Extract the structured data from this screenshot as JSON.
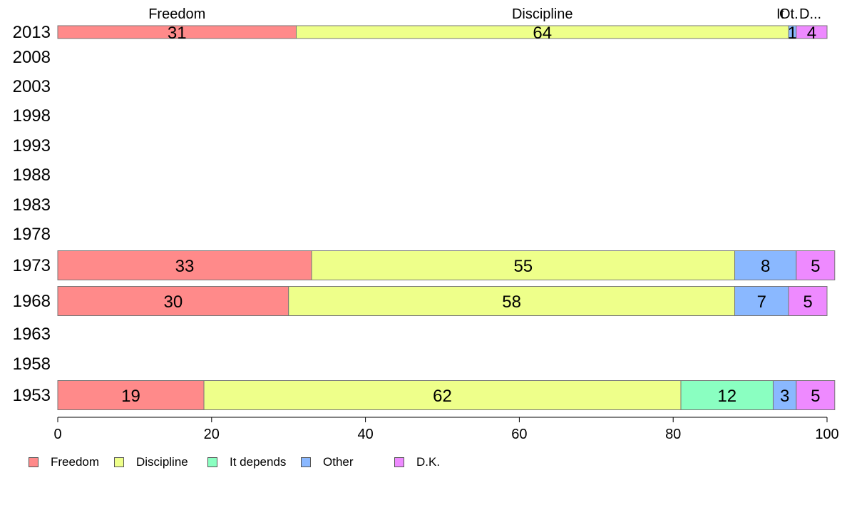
{
  "chart_data": {
    "type": "bar",
    "orientation": "horizontal",
    "stacked": true,
    "categories": [
      "2013",
      "2008",
      "2003",
      "1998",
      "1993",
      "1988",
      "1983",
      "1978",
      "1973",
      "1968",
      "1963",
      "1958",
      "1953"
    ],
    "series": [
      {
        "name": "Freedom",
        "color": "#FF8A8A",
        "values": [
          31,
          null,
          null,
          null,
          null,
          null,
          null,
          null,
          33,
          30,
          null,
          null,
          19
        ]
      },
      {
        "name": "Discipline",
        "color": "#EEFF8A",
        "values": [
          64,
          null,
          null,
          null,
          null,
          null,
          null,
          null,
          55,
          58,
          null,
          null,
          62
        ]
      },
      {
        "name": "It depends",
        "color": "#8AFFC1",
        "values": [
          0,
          null,
          null,
          null,
          null,
          null,
          null,
          null,
          0,
          0,
          null,
          null,
          12
        ]
      },
      {
        "name": "Other",
        "color": "#8AB8FF",
        "values": [
          1,
          null,
          null,
          null,
          null,
          null,
          null,
          null,
          8,
          7,
          null,
          null,
          3
        ]
      },
      {
        "name": "D.K.",
        "color": "#EE8AFF",
        "values": [
          4,
          null,
          null,
          null,
          null,
          null,
          null,
          null,
          5,
          5,
          null,
          null,
          5
        ]
      }
    ],
    "top_labels": [
      "Freedom",
      "Discipline",
      "It",
      "Ot.",
      "D..."
    ],
    "xlim": [
      0,
      100
    ],
    "xticks": [
      "0",
      "20",
      "40",
      "60",
      "80",
      "100"
    ],
    "grid": false,
    "legend_position": "bottom"
  }
}
